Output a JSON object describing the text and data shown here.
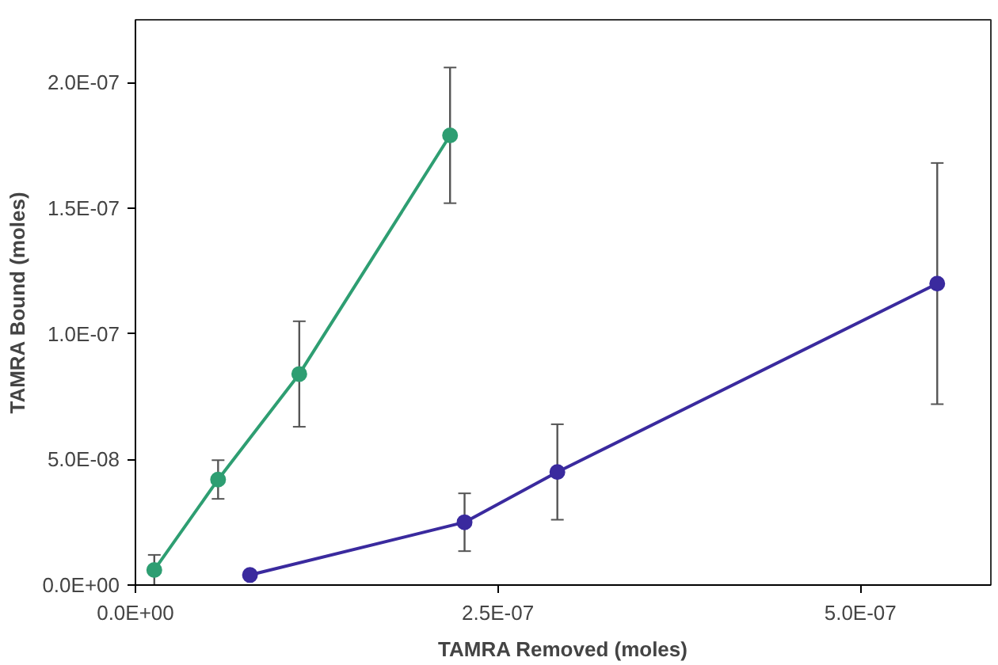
{
  "chart_data": {
    "type": "line",
    "xlabel": "TAMRA Removed (moles)",
    "ylabel": "TAMRA Bound (moles)",
    "xlim": [
      0,
      5.9e-07
    ],
    "ylim": [
      0,
      2.25e-07
    ],
    "xticks": [
      {
        "value": 0,
        "label": "0.0E+00"
      },
      {
        "value": 2.5e-07,
        "label": "2.5E-07"
      },
      {
        "value": 5e-07,
        "label": "5.0E-07"
      }
    ],
    "yticks": [
      {
        "value": 0,
        "label": "0.0E+00"
      },
      {
        "value": 5e-08,
        "label": "5.0E-08"
      },
      {
        "value": 1e-07,
        "label": "1.0E-07"
      },
      {
        "value": 1.5e-07,
        "label": "1.5E-07"
      },
      {
        "value": 2e-07,
        "label": "2.0E-07"
      }
    ],
    "grid": false,
    "marker": "circle",
    "line_style": "solid",
    "series": [
      {
        "color": "#2e9e72",
        "x": [
          1.3e-08,
          5.7e-08,
          1.13e-07,
          2.17e-07
        ],
        "values": [
          6e-09,
          4.2e-08,
          8.4e-08,
          1.79e-07
        ],
        "errors": [
          6e-09,
          7.7e-09,
          2.1e-08,
          2.7e-08
        ]
      },
      {
        "color": "#3a2a9e",
        "x": [
          7.9e-08,
          2.27e-07,
          2.91e-07,
          5.53e-07
        ],
        "values": [
          4e-09,
          2.5e-08,
          4.5e-08,
          1.2e-07
        ],
        "errors": [
          null,
          1.15e-08,
          1.9e-08,
          4.8e-08
        ]
      }
    ]
  }
}
